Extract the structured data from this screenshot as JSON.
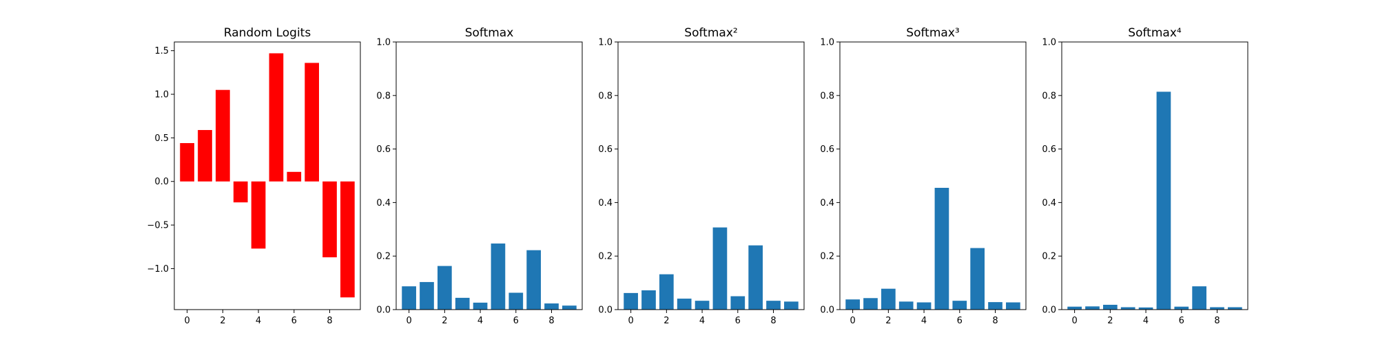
{
  "chart_data": [
    {
      "type": "bar",
      "title": "Random Logits",
      "x": [
        0,
        1,
        2,
        3,
        4,
        5,
        6,
        7,
        8,
        9
      ],
      "values": [
        0.44,
        0.59,
        1.05,
        -0.24,
        -0.77,
        1.47,
        0.11,
        1.36,
        -0.87,
        -1.33
      ],
      "ylim": [
        -1.47,
        1.6
      ],
      "yticks": [
        -1.0,
        -0.5,
        0.0,
        0.5,
        1.0,
        1.5
      ],
      "ytick_labels": [
        "−1.0",
        "−0.5",
        "0.0",
        "0.5",
        "1.0",
        "1.5"
      ],
      "xticks": [
        0,
        2,
        4,
        6,
        8
      ],
      "xtick_labels": [
        "0",
        "2",
        "4",
        "6",
        "8"
      ],
      "color": "#ff0000",
      "grid": false
    },
    {
      "type": "bar",
      "title": "Softmax",
      "x": [
        0,
        1,
        2,
        3,
        4,
        5,
        6,
        7,
        8,
        9
      ],
      "values": [
        0.087,
        0.103,
        0.163,
        0.044,
        0.026,
        0.247,
        0.063,
        0.222,
        0.023,
        0.015
      ],
      "ylim": [
        0,
        1.0
      ],
      "yticks": [
        0.0,
        0.2,
        0.4,
        0.6,
        0.8,
        1.0
      ],
      "ytick_labels": [
        "0.0",
        "0.2",
        "0.4",
        "0.6",
        "0.8",
        "1.0"
      ],
      "xticks": [
        0,
        2,
        4,
        6,
        8
      ],
      "xtick_labels": [
        "0",
        "2",
        "4",
        "6",
        "8"
      ],
      "color": "#1f77b4",
      "grid": false
    },
    {
      "type": "bar",
      "title": "Softmax²",
      "x": [
        0,
        1,
        2,
        3,
        4,
        5,
        6,
        7,
        8,
        9
      ],
      "values": [
        0.062,
        0.072,
        0.132,
        0.041,
        0.033,
        0.307,
        0.05,
        0.24,
        0.033,
        0.03
      ],
      "ylim": [
        0,
        1.0
      ],
      "yticks": [
        0.0,
        0.2,
        0.4,
        0.6,
        0.8,
        1.0
      ],
      "ytick_labels": [
        "0.0",
        "0.2",
        "0.4",
        "0.6",
        "0.8",
        "1.0"
      ],
      "xticks": [
        0,
        2,
        4,
        6,
        8
      ],
      "xtick_labels": [
        "0",
        "2",
        "4",
        "6",
        "8"
      ],
      "color": "#1f77b4",
      "grid": false
    },
    {
      "type": "bar",
      "title": "Softmax³",
      "x": [
        0,
        1,
        2,
        3,
        4,
        5,
        6,
        7,
        8,
        9
      ],
      "values": [
        0.038,
        0.043,
        0.078,
        0.03,
        0.027,
        0.455,
        0.033,
        0.23,
        0.028,
        0.027
      ],
      "ylim": [
        0,
        1.0
      ],
      "yticks": [
        0.0,
        0.2,
        0.4,
        0.6,
        0.8,
        1.0
      ],
      "ytick_labels": [
        "0.0",
        "0.2",
        "0.4",
        "0.6",
        "0.8",
        "1.0"
      ],
      "xticks": [
        0,
        2,
        4,
        6,
        8
      ],
      "xtick_labels": [
        "0",
        "2",
        "4",
        "6",
        "8"
      ],
      "color": "#1f77b4",
      "grid": false
    },
    {
      "type": "bar",
      "title": "Softmax⁴",
      "x": [
        0,
        1,
        2,
        3,
        4,
        5,
        6,
        7,
        8,
        9
      ],
      "values": [
        0.011,
        0.012,
        0.018,
        0.009,
        0.008,
        0.814,
        0.011,
        0.087,
        0.009,
        0.009
      ],
      "ylim": [
        0,
        1.0
      ],
      "yticks": [
        0.0,
        0.2,
        0.4,
        0.6,
        0.8,
        1.0
      ],
      "ytick_labels": [
        "0.0",
        "0.2",
        "0.4",
        "0.6",
        "0.8",
        "1.0"
      ],
      "xticks": [
        0,
        2,
        4,
        6,
        8
      ],
      "xtick_labels": [
        "0",
        "2",
        "4",
        "6",
        "8"
      ],
      "color": "#1f77b4",
      "grid": false
    }
  ]
}
